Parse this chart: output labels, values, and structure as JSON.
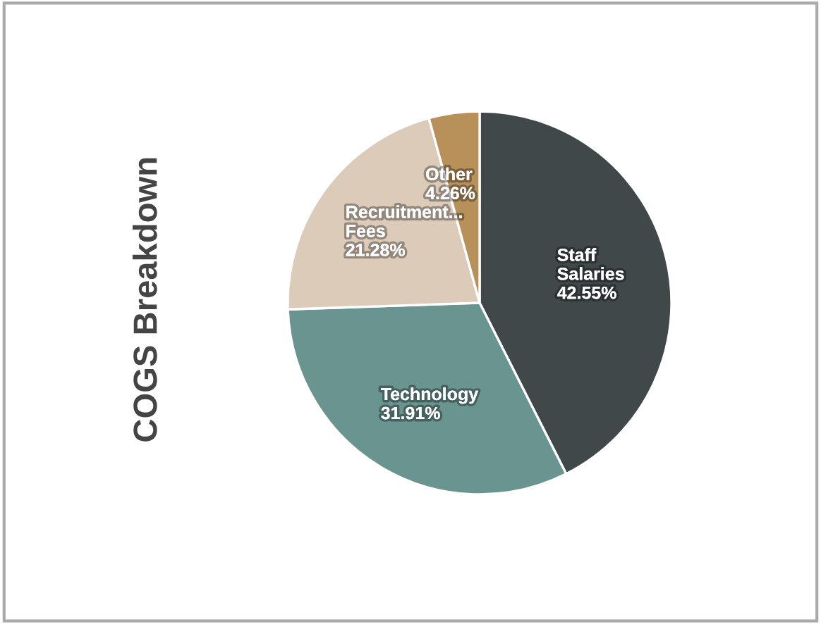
{
  "chart_data": {
    "type": "pie",
    "title": "COGS Breakdown",
    "categories": [
      "Staff Salaries",
      "Technology",
      "Recruitment... Fees",
      "Other"
    ],
    "values": [
      42.55,
      31.91,
      21.28,
      4.26
    ],
    "value_labels": [
      "42.55%",
      "31.91%",
      "21.28%",
      "4.26%"
    ],
    "colors": [
      "#41484a",
      "#6a9490",
      "#dbcbb8",
      "#b8915a"
    ]
  }
}
